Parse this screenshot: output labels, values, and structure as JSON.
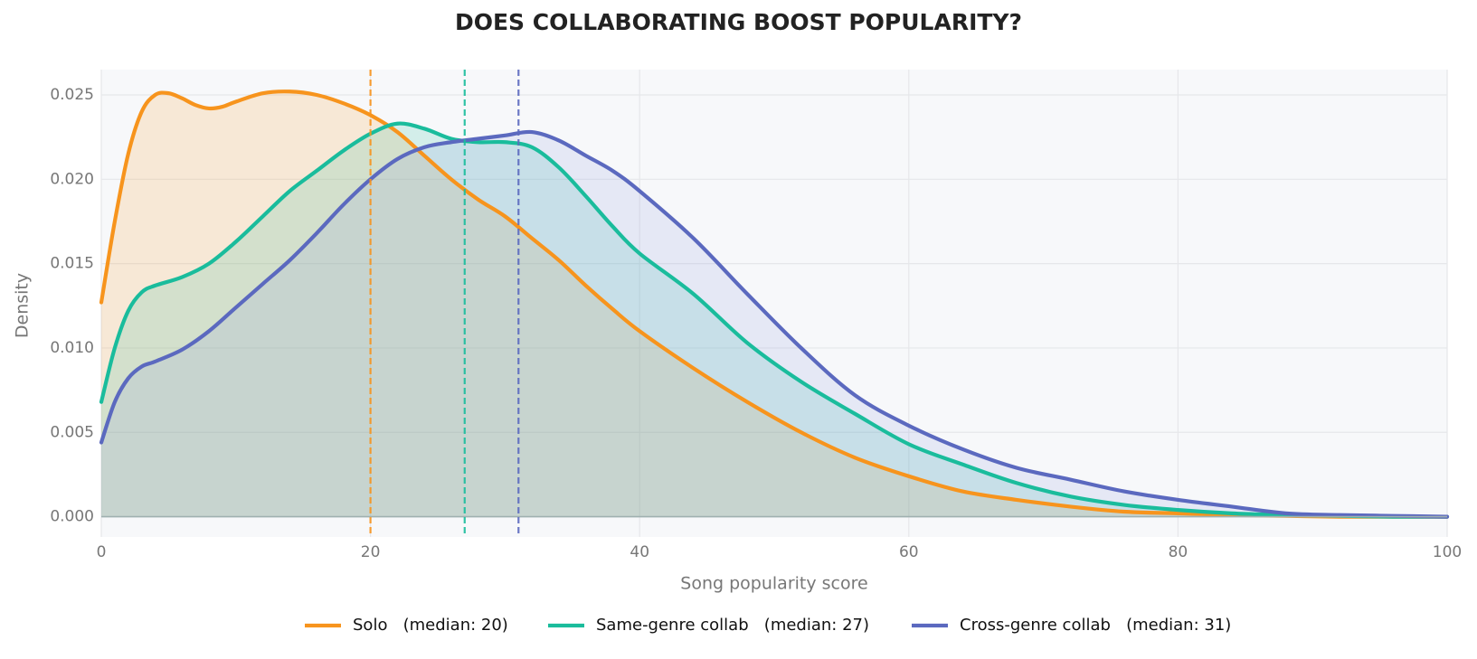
{
  "chart_data": {
    "type": "area",
    "title": "DOES COLLABORATING BOOST POPULARITY?",
    "xlabel": "Song popularity score",
    "ylabel": "Density",
    "xlim": [
      0,
      100
    ],
    "ylim": [
      -0.0012,
      0.0265
    ],
    "x_ticks": [
      0,
      20,
      40,
      60,
      80,
      100
    ],
    "y_ticks": [
      0.0,
      0.005,
      0.01,
      0.015,
      0.02,
      0.025
    ],
    "x_tick_labels": [
      "0",
      "20",
      "40",
      "60",
      "80",
      "100"
    ],
    "y_tick_labels": [
      "0.000",
      "0.005",
      "0.010",
      "0.015",
      "0.020",
      "0.025"
    ],
    "grid": true,
    "legend_position": "bottom-center",
    "series": [
      {
        "name": "Solo",
        "legend_label": "Solo   (median: 20)",
        "color": "#F7941D",
        "fill_color": "#F7941D",
        "median": 20,
        "x": [
          0,
          1,
          2,
          3,
          4,
          5,
          6,
          7,
          8,
          9,
          10,
          12,
          14,
          16,
          18,
          20,
          22,
          24,
          26,
          28,
          30,
          32,
          34,
          36,
          38,
          40,
          44,
          48,
          52,
          56,
          60,
          64,
          68,
          72,
          76,
          80,
          84,
          88,
          92,
          96,
          100
        ],
        "values": [
          0.0127,
          0.0175,
          0.0215,
          0.024,
          0.025,
          0.0251,
          0.0248,
          0.0244,
          0.0242,
          0.0243,
          0.0246,
          0.0251,
          0.0252,
          0.025,
          0.0245,
          0.0238,
          0.0228,
          0.0214,
          0.02,
          0.0188,
          0.0178,
          0.0165,
          0.0152,
          0.0137,
          0.0123,
          0.011,
          0.0088,
          0.0068,
          0.005,
          0.0035,
          0.0024,
          0.0015,
          0.001,
          0.0006,
          0.0003,
          0.0002,
          0.0001,
          5e-05,
          0.0,
          0.0,
          0.0
        ]
      },
      {
        "name": "Same-genre collab",
        "legend_label": "Same-genre collab   (median: 27)",
        "color": "#1ABC9C",
        "fill_color": "#1ABC9C",
        "median": 27,
        "x": [
          0,
          1,
          2,
          3,
          4,
          6,
          8,
          10,
          12,
          14,
          16,
          18,
          20,
          22,
          24,
          26,
          28,
          30,
          32,
          34,
          36,
          38,
          40,
          44,
          48,
          52,
          56,
          60,
          64,
          68,
          72,
          76,
          80,
          84,
          88,
          92,
          96,
          100
        ],
        "values": [
          0.0068,
          0.01,
          0.0122,
          0.0133,
          0.0137,
          0.0142,
          0.015,
          0.0163,
          0.0178,
          0.0193,
          0.0205,
          0.0217,
          0.0227,
          0.0233,
          0.023,
          0.0224,
          0.0222,
          0.0222,
          0.0219,
          0.0207,
          0.019,
          0.0172,
          0.0156,
          0.0132,
          0.0103,
          0.008,
          0.0061,
          0.0043,
          0.0031,
          0.002,
          0.0012,
          0.0007,
          0.0004,
          0.0002,
          0.0001,
          5e-05,
          0.0,
          0.0
        ]
      },
      {
        "name": "Cross-genre collab",
        "legend_label": "Cross-genre collab   (median: 31)",
        "color": "#5B69BF",
        "fill_color": "#8A93E0",
        "median": 31,
        "x": [
          0,
          1,
          2,
          3,
          4,
          6,
          8,
          10,
          12,
          14,
          16,
          18,
          20,
          22,
          24,
          26,
          28,
          30,
          32,
          34,
          36,
          38,
          40,
          44,
          48,
          52,
          56,
          60,
          64,
          68,
          72,
          76,
          80,
          84,
          88,
          92,
          96,
          100
        ],
        "values": [
          0.0044,
          0.0068,
          0.0082,
          0.0089,
          0.0092,
          0.0099,
          0.011,
          0.0124,
          0.0138,
          0.0152,
          0.0168,
          0.0185,
          0.02,
          0.0212,
          0.0219,
          0.0222,
          0.0224,
          0.0226,
          0.0228,
          0.0223,
          0.0214,
          0.0205,
          0.0193,
          0.0165,
          0.0132,
          0.01,
          0.0072,
          0.0054,
          0.004,
          0.0029,
          0.0022,
          0.0015,
          0.001,
          0.0006,
          0.0002,
          0.0001,
          5e-05,
          0.0
        ]
      }
    ]
  }
}
